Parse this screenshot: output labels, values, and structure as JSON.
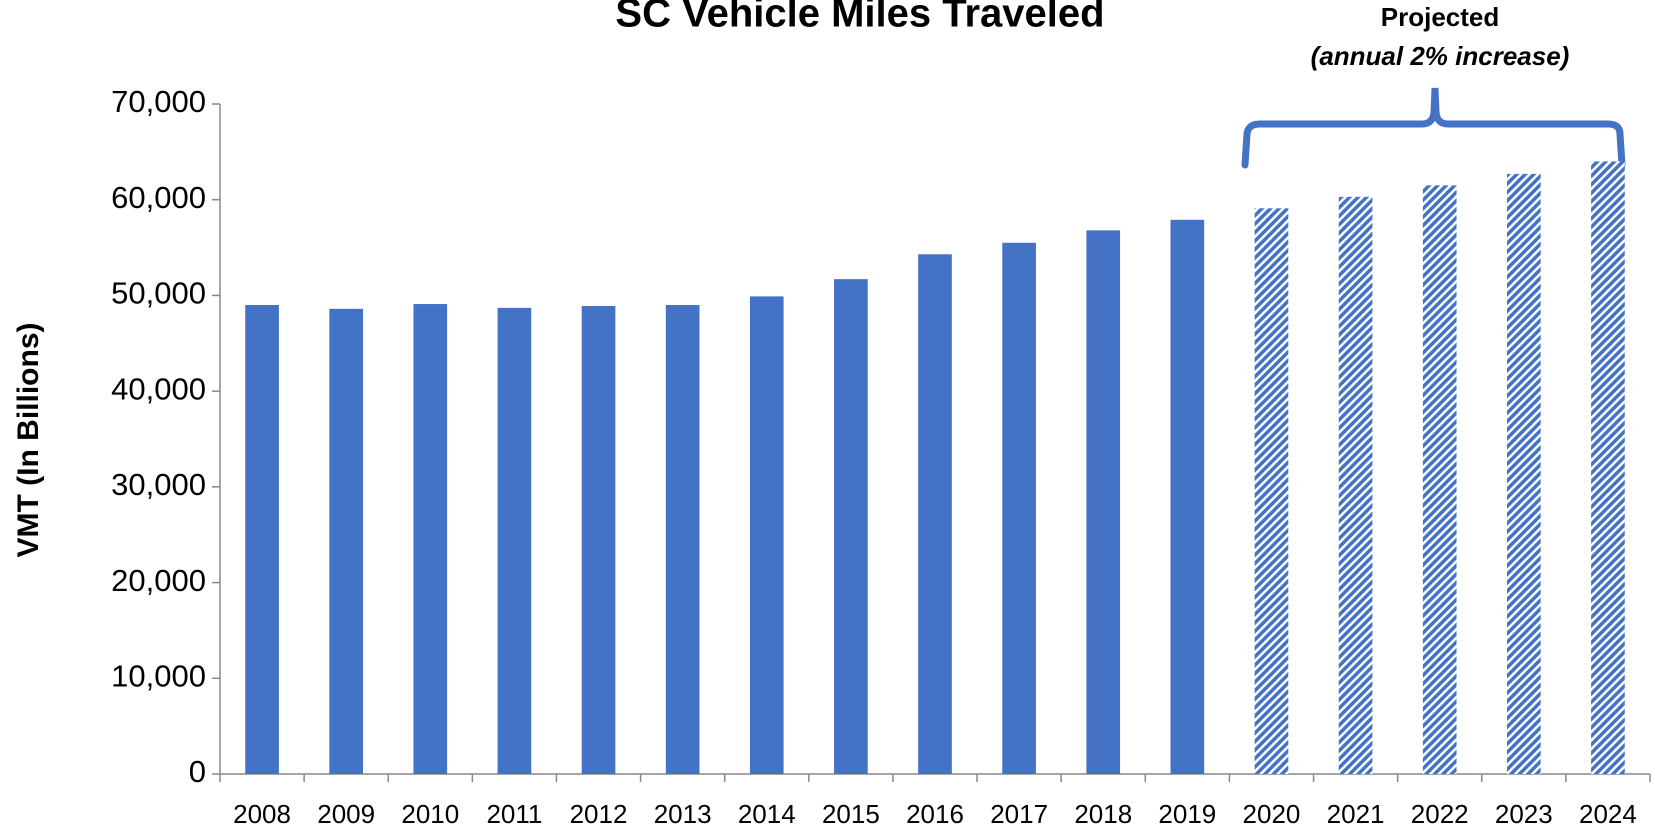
{
  "chart_data": {
    "type": "bar",
    "title": "SC Vehicle Miles Traveled",
    "y_label": "VMT (In Billions)",
    "annotation": "Projected",
    "annotation_note": "(annual 2% increase)",
    "categories": [
      "2008",
      "2009",
      "2010",
      "2011",
      "2012",
      "2013",
      "2014",
      "2015",
      "2016",
      "2017",
      "2018",
      "2019",
      "2020",
      "2021",
      "2022",
      "2023",
      "2024"
    ],
    "values": [
      49000,
      48600,
      49100,
      48700,
      48900,
      49000,
      49900,
      51700,
      54300,
      55500,
      56800,
      57900,
      59100,
      60300,
      61500,
      62700,
      64000
    ],
    "bar_style": [
      "solid",
      "solid",
      "solid",
      "solid",
      "solid",
      "solid",
      "solid",
      "solid",
      "solid",
      "solid",
      "solid",
      "solid",
      "hatched",
      "hatched",
      "hatched",
      "hatched",
      "hatched"
    ],
    "color": "#4472c4",
    "ylim": [
      0,
      70000
    ],
    "yticks": [
      {
        "value": 0,
        "label": "0"
      },
      {
        "value": 10000,
        "label": "10,000"
      },
      {
        "value": 20000,
        "label": "20,000"
      },
      {
        "value": 30000,
        "label": "30,000"
      },
      {
        "value": 40000,
        "label": "40,000"
      },
      {
        "value": 50000,
        "label": "50,000"
      },
      {
        "value": 60000,
        "label": "60,000"
      },
      {
        "value": 70000,
        "label": "70,000"
      }
    ],
    "grid": false
  }
}
